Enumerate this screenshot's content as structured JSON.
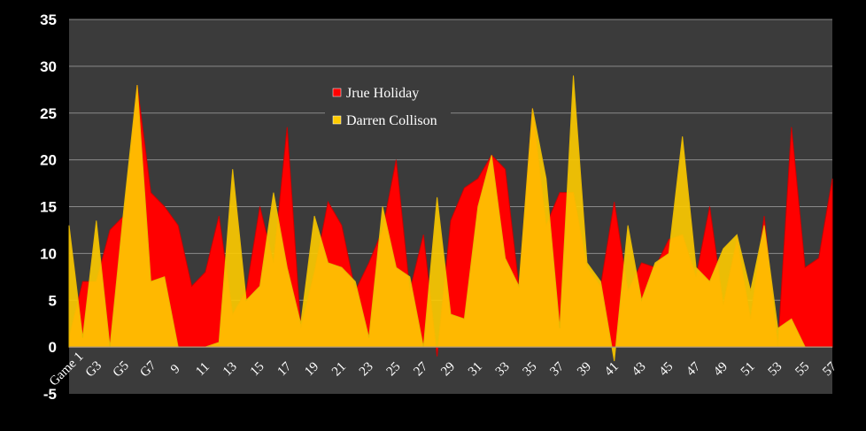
{
  "chart_data": {
    "type": "area",
    "title": "",
    "xlabel": "",
    "ylabel": "",
    "ylim": [
      -5,
      35
    ],
    "yticks": [
      -5,
      0,
      5,
      10,
      15,
      20,
      25,
      30,
      35
    ],
    "x": [
      1,
      2,
      3,
      4,
      5,
      6,
      7,
      8,
      9,
      10,
      11,
      12,
      13,
      14,
      15,
      16,
      17,
      18,
      19,
      20,
      21,
      22,
      23,
      24,
      25,
      26,
      27,
      28,
      29,
      30,
      31,
      32,
      33,
      34,
      35,
      36,
      37,
      38,
      39,
      40,
      41,
      42,
      43,
      44,
      45,
      46,
      47,
      48,
      49,
      50,
      51,
      52,
      53,
      54,
      55,
      56,
      57
    ],
    "tick_labels": [
      "Game 1",
      "G3",
      "G5",
      "G7",
      "9",
      "11",
      "13",
      "15",
      "17",
      "19",
      "21",
      "23",
      "25",
      "27",
      "29",
      "31",
      "33",
      "35",
      "37",
      "39",
      "41",
      "43",
      "45",
      "47",
      "49",
      "51",
      "53",
      "55",
      "57"
    ],
    "grid": true,
    "legend_position": "upper-middle",
    "series": [
      {
        "name": "Jrue Holiday",
        "color": "#ff0000",
        "values": [
          1,
          7,
          7,
          12.5,
          14,
          28,
          16.5,
          15,
          13,
          6.5,
          8,
          14,
          3.5,
          6,
          15,
          9,
          23.5,
          2,
          8,
          15.5,
          13,
          6,
          9,
          12.5,
          20,
          6,
          12,
          -1,
          13.5,
          17,
          18,
          20.5,
          19,
          6.5,
          25.5,
          13,
          16.5,
          16.5,
          8.5,
          6.5,
          15.5,
          6,
          9,
          8.5,
          11.5,
          12,
          7.5,
          15,
          4.5,
          11.5,
          3,
          14,
          0,
          23.5,
          8.5,
          9.5,
          18
        ]
      },
      {
        "name": "Darren Collison",
        "color": "#ffcc00",
        "values": [
          13,
          1,
          13.5,
          0,
          14.5,
          28,
          7,
          7.5,
          0,
          0,
          0,
          0.5,
          19,
          5,
          6.5,
          16.5,
          8.5,
          2.5,
          14,
          9,
          8.5,
          7,
          1,
          15,
          8.5,
          7.5,
          0,
          16,
          3.5,
          3,
          15,
          20.5,
          9.5,
          6.5,
          25.5,
          18,
          2,
          29,
          9,
          7,
          -1.5,
          13,
          5,
          9,
          10,
          22.5,
          8.5,
          7,
          10.5,
          12,
          6,
          13,
          2,
          3,
          0,
          0,
          0
        ]
      }
    ]
  }
}
